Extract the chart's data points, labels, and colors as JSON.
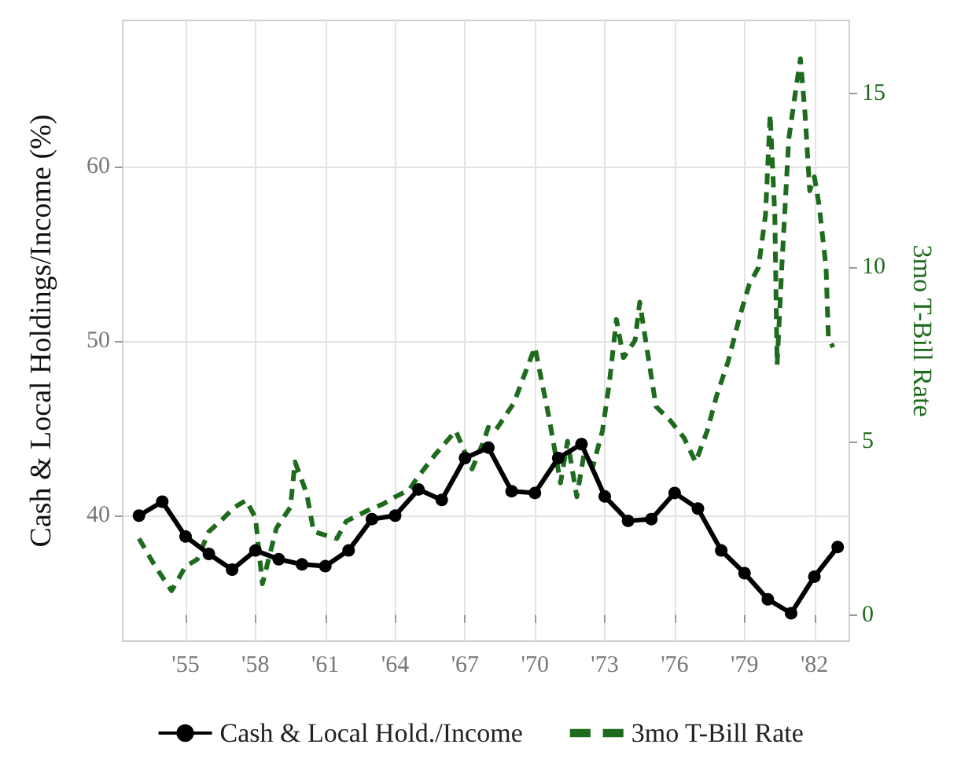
{
  "chart_data": {
    "type": "line",
    "ylabel": "Cash & Local Holdings/Income (%)",
    "y2label": "3mo T-Bill Rate",
    "xlim": [
      1952.3,
      1983.5
    ],
    "xticks": [
      {
        "value": 1955,
        "label": "'55"
      },
      {
        "value": 1958,
        "label": "'58"
      },
      {
        "value": 1961,
        "label": "'61"
      },
      {
        "value": 1964,
        "label": "'64"
      },
      {
        "value": 1967,
        "label": "'67"
      },
      {
        "value": 1970,
        "label": "'70"
      },
      {
        "value": 1973,
        "label": "'73"
      },
      {
        "value": 1976,
        "label": "'76"
      },
      {
        "value": 1979,
        "label": "'79"
      },
      {
        "value": 1982,
        "label": "'82"
      }
    ],
    "ylim": [
      32.8,
      68.4
    ],
    "yticks": [
      40,
      50,
      60
    ],
    "y2lim": [
      -0.75,
      17.1
    ],
    "y2ticks": [
      0,
      5,
      10,
      15
    ],
    "grid": true,
    "legend": "bottom",
    "series": [
      {
        "name": "Cash & Local Hold./Income",
        "color": "#000000",
        "marker": "circle",
        "line_style": "solid",
        "x": [
          1953,
          1954,
          1955,
          1956,
          1957,
          1958,
          1959,
          1960,
          1961,
          1962,
          1963,
          1964,
          1965,
          1966,
          1967,
          1968,
          1969,
          1970,
          1971,
          1972,
          1973,
          1974,
          1975,
          1976,
          1977,
          1978,
          1979,
          1980,
          1981,
          1982,
          1983
        ],
        "values": [
          40.0,
          40.8,
          38.8,
          37.8,
          36.9,
          38.0,
          37.5,
          37.2,
          37.1,
          38.0,
          39.8,
          40.0,
          41.5,
          40.9,
          43.3,
          43.9,
          41.4,
          41.3,
          43.3,
          44.1,
          41.1,
          39.7,
          39.8,
          41.3,
          40.4,
          38.0,
          36.7,
          35.2,
          34.4,
          36.5,
          38.2
        ]
      },
      {
        "name": "3mo T-Bill Rate",
        "color": "#1e6b1e",
        "marker": "none",
        "line_style": "dashed",
        "axis": "y2",
        "x": [
          1953.0,
          1953.7,
          1954.4,
          1955.0,
          1955.5,
          1956.0,
          1956.5,
          1957.1,
          1957.6,
          1958.0,
          1958.3,
          1958.9,
          1959.5,
          1959.7,
          1960.2,
          1960.5,
          1961.0,
          1961.5,
          1961.9,
          1962.8,
          1963.5,
          1964.0,
          1964.6,
          1964.9,
          1965.7,
          1966.6,
          1967.3,
          1967.8,
          1968.0,
          1968.3,
          1969.1,
          1969.6,
          1970.0,
          1970.3,
          1970.6,
          1971.1,
          1971.4,
          1971.8,
          1972.1,
          1972.5,
          1972.9,
          1973.2,
          1973.5,
          1973.8,
          1974.3,
          1974.5,
          1974.8,
          1975.2,
          1975.8,
          1976.4,
          1976.9,
          1977.4,
          1977.8,
          1978.3,
          1978.8,
          1979.2,
          1979.6,
          1979.9,
          1980.1,
          1980.3,
          1980.4,
          1980.6,
          1980.9,
          1981.2,
          1981.4,
          1981.6,
          1981.8,
          1982.0,
          1982.2,
          1982.5,
          1982.6,
          1982.8
        ],
        "values": [
          2.2,
          1.4,
          0.7,
          1.4,
          1.6,
          2.4,
          2.7,
          3.1,
          3.3,
          2.8,
          0.9,
          2.5,
          3.1,
          4.4,
          3.5,
          2.4,
          2.3,
          2.2,
          2.7,
          3.0,
          3.2,
          3.4,
          3.6,
          3.9,
          4.6,
          5.3,
          4.2,
          5.0,
          5.4,
          5.3,
          6.1,
          7.0,
          7.7,
          6.7,
          5.7,
          3.8,
          5.0,
          3.4,
          4.6,
          4.3,
          5.3,
          6.7,
          8.5,
          7.4,
          7.9,
          9.0,
          7.7,
          6.0,
          5.6,
          5.1,
          4.4,
          5.3,
          6.3,
          7.3,
          8.6,
          9.5,
          10.0,
          11.5,
          14.4,
          11.5,
          7.2,
          10.0,
          13.7,
          15.1,
          16.0,
          14.4,
          12.2,
          12.6,
          11.8,
          10.0,
          8.0,
          7.7
        ]
      }
    ]
  }
}
